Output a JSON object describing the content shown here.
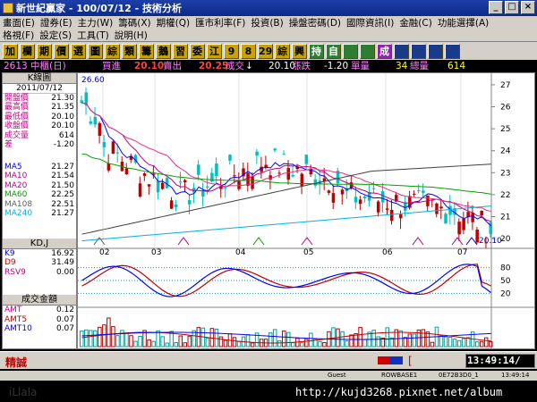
{
  "window": {
    "title": "新世紀贏家 - 100/07/12 - 技術分析"
  },
  "menu": {
    "row1": [
      "畫面(E)",
      "證券(E)",
      "主力(W)",
      "籌碼(X)",
      "期權(Q)",
      "匯市利率(F)",
      "投資(B)",
      "操盤密碼(D)",
      "國際資訊(I)",
      "金融(C)",
      "功能選擇(A)"
    ],
    "row2": [
      "格視(F)",
      "設定(S)",
      "工具(T)",
      "說明(H)"
    ]
  },
  "toolbar": {
    "buttons": [
      "加",
      "欄",
      "期",
      "價",
      "選",
      "圖",
      "綜",
      "類",
      "籌",
      "鵝",
      "習",
      "委",
      "江",
      "9",
      "8",
      "29",
      "綜",
      "興",
      "持",
      "自",
      "",
      "",
      "成",
      "",
      "",
      "",
      ""
    ]
  },
  "quote": {
    "stock": "2613 中櫃(日)",
    "bid_label": "買進",
    "bid_value": "20.10",
    "ask_label": "賣出",
    "ask_value": "20.25",
    "trade_label": "成交",
    "trade_value": "20.10",
    "change_label": "漲跌",
    "change_value": "-1.20",
    "single_label": "單量",
    "single_value": "34",
    "total_label": "總量",
    "total_value": "614"
  },
  "kline_panel": {
    "title": "K線圖",
    "date": "2011/07/12",
    "open_label": "開盤價",
    "open": "21.30",
    "high_label": "最高價",
    "high": "21.35",
    "low_label": "最低價",
    "low": "20.10",
    "close_label": "收盤價",
    "close": "20.10",
    "volume_label": "成交量",
    "volume": "614",
    "diff_label": "差",
    "diff": "-1.20",
    "ma": [
      {
        "label": "MA5",
        "value": "21.27",
        "color": "#0000ff"
      },
      {
        "label": "MA10",
        "value": "21.54",
        "color": "#c00080"
      },
      {
        "label": "MA20",
        "value": "21.50",
        "color": "#c00080"
      },
      {
        "label": "MA60",
        "value": "22.25",
        "color": "#00a000"
      },
      {
        "label": "MA108",
        "value": "22.51",
        "color": "#606060"
      },
      {
        "label": "MA240",
        "value": "21.27",
        "color": "#00b0e0"
      }
    ],
    "price_top_label": "26.60",
    "last_label": "20.10"
  },
  "kd_panel": {
    "title": "KD,J",
    "rows": [
      {
        "label": "K9",
        "value": "16.92",
        "color": "#0000ff"
      },
      {
        "label": "D9",
        "value": "31.49",
        "color": "#c00000"
      },
      {
        "label": "RSV9",
        "value": "0.00",
        "color": "#c00080"
      }
    ]
  },
  "vol_panel": {
    "title": "成交金額",
    "rows": [
      {
        "label": "AMT",
        "value": "0.12",
        "color": "#c00080"
      },
      {
        "label": "AMT5",
        "value": "0.07",
        "color": "#c00000"
      },
      {
        "label": "AMT10",
        "value": "0.07",
        "color": "#0000ff"
      }
    ]
  },
  "chart_data": {
    "type": "candlestick",
    "x_ticks": [
      "02",
      "03",
      "04",
      "05",
      "06",
      "07"
    ],
    "price_axis": [
      "27",
      "26",
      "25",
      "24",
      "23",
      "22",
      "21",
      "20"
    ],
    "kd_axis": [
      "80",
      "50",
      "20"
    ],
    "ylim_price": [
      19.8,
      27.2
    ]
  },
  "status": {
    "brand": "精誠",
    "time": "13:49:14/",
    "bracket": "["
  },
  "bottom": {
    "guest": "Guest",
    "id1": "ROWBASE1",
    "id2": "0E72B3D0_1",
    "time2": "13:49:14",
    "url": "http://kujd3268.pixnet.net/album"
  },
  "colors": {
    "up": "#c00000",
    "down": "#00c0c0",
    "menu": "#d4d0c8",
    "chart_bg": "#ffffff"
  }
}
